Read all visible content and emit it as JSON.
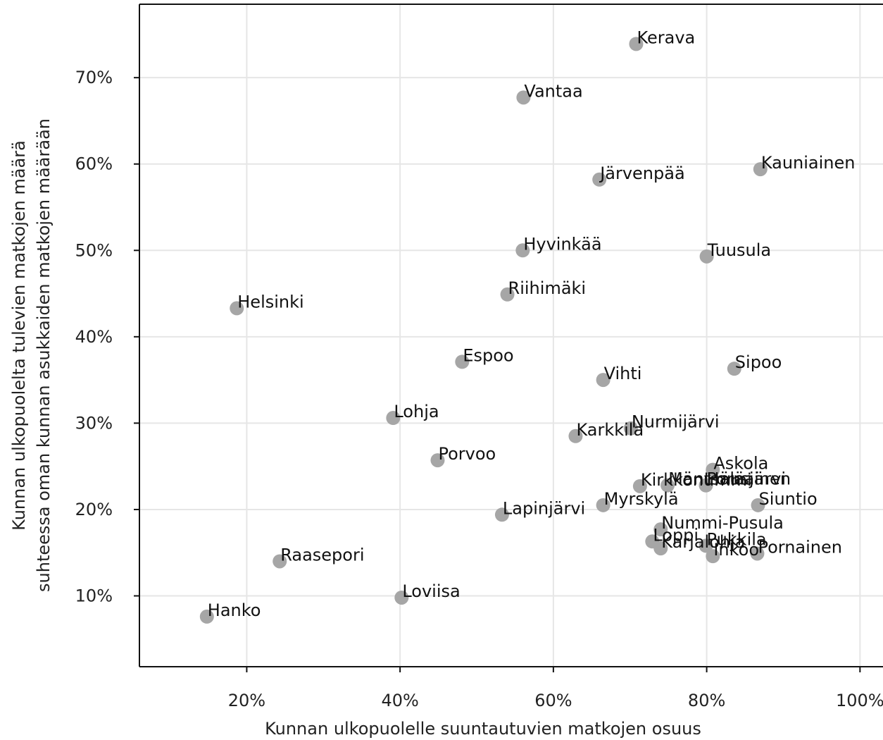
{
  "chart_data": {
    "type": "scatter",
    "title": "",
    "xlabel": "Kunnan ulkopuolelle suuntautuvien matkojen osuus",
    "ylabel": [
      "Kunnan ulkopuolelta tulevien matkojen määrä",
      "suhteessa oman kunnan asukkaiden matkojen määrään"
    ],
    "xlim": [
      0.06,
      1.03
    ],
    "ylim": [
      0.018,
      0.785
    ],
    "x_ticks": [
      0.2,
      0.4,
      0.6,
      0.8,
      1.0
    ],
    "x_tick_labels": [
      "20%",
      "40%",
      "60%",
      "80%",
      "100%"
    ],
    "y_ticks": [
      0.1,
      0.2,
      0.3,
      0.4,
      0.5,
      0.6,
      0.7
    ],
    "y_tick_labels": [
      "10%",
      "20%",
      "30%",
      "40%",
      "50%",
      "60%",
      "70%"
    ],
    "grid": true,
    "point_color": "#a6a6a6",
    "points": [
      {
        "label": "Kerava",
        "x": 0.708,
        "y": 0.739
      },
      {
        "label": "Vantaa",
        "x": 0.561,
        "y": 0.677
      },
      {
        "label": "Kauniainen",
        "x": 0.87,
        "y": 0.594
      },
      {
        "label": "Järvenpää",
        "x": 0.66,
        "y": 0.582
      },
      {
        "label": "Hyvinkää",
        "x": 0.56,
        "y": 0.5
      },
      {
        "label": "Tuusula",
        "x": 0.8,
        "y": 0.493
      },
      {
        "label": "Riihimäki",
        "x": 0.54,
        "y": 0.449
      },
      {
        "label": "Helsinki",
        "x": 0.187,
        "y": 0.433
      },
      {
        "label": "Espoo",
        "x": 0.481,
        "y": 0.371
      },
      {
        "label": "Sipoo",
        "x": 0.836,
        "y": 0.363
      },
      {
        "label": "Vihti",
        "x": 0.665,
        "y": 0.35
      },
      {
        "label": "Lohja",
        "x": 0.391,
        "y": 0.306
      },
      {
        "label": "Nurmijärvi",
        "x": 0.701,
        "y": 0.294
      },
      {
        "label": "Karkkila",
        "x": 0.629,
        "y": 0.285
      },
      {
        "label": "Porvoo",
        "x": 0.449,
        "y": 0.257
      },
      {
        "label": "Askola",
        "x": 0.808,
        "y": 0.246
      },
      {
        "label": "Kirkkonummi",
        "x": 0.713,
        "y": 0.227
      },
      {
        "label": "Mäntsälä",
        "x": 0.749,
        "y": 0.228
      },
      {
        "label": "Pornainen",
        "x": 0.799,
        "y": 0.228
      },
      {
        "label": "Hausjärvi",
        "x": 0.799,
        "y": 0.228
      },
      {
        "label": "Myrskylä",
        "x": 0.665,
        "y": 0.205
      },
      {
        "label": "Siuntio",
        "x": 0.867,
        "y": 0.205
      },
      {
        "label": "Lapinjärvi",
        "x": 0.533,
        "y": 0.194
      },
      {
        "label": "Nummi-Pusula",
        "x": 0.74,
        "y": 0.177
      },
      {
        "label": "Loppi",
        "x": 0.729,
        "y": 0.163
      },
      {
        "label": "Karjalohja",
        "x": 0.74,
        "y": 0.155
      },
      {
        "label": "Pukkila",
        "x": 0.799,
        "y": 0.158
      },
      {
        "label": "Inkoo",
        "x": 0.808,
        "y": 0.146
      },
      {
        "label": "Pornainen",
        "x": 0.866,
        "y": 0.149
      },
      {
        "label": "Raasepori",
        "x": 0.243,
        "y": 0.14
      },
      {
        "label": "Loviisa",
        "x": 0.402,
        "y": 0.098
      },
      {
        "label": "Hanko",
        "x": 0.148,
        "y": 0.076
      }
    ]
  }
}
